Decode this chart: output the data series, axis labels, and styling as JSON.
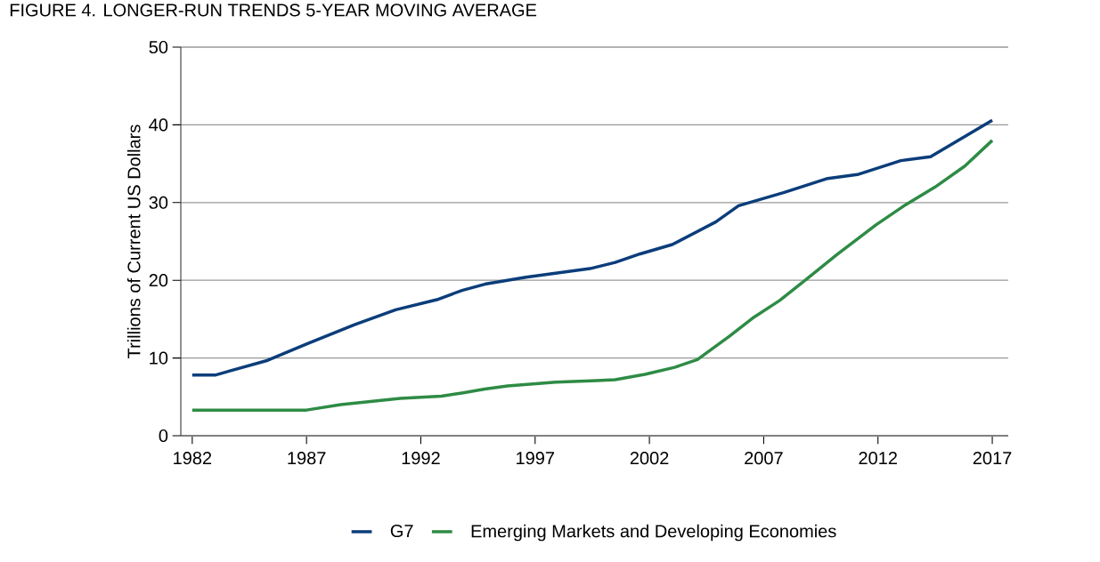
{
  "chart_data": {
    "type": "line",
    "title": "FIGURE 4. LONGER-RUN TRENDS 5-YEAR MOVING AVERAGE",
    "ylabel": "Trillions of Current US Dollars",
    "xlim": [
      1981.5,
      2017.7
    ],
    "xticks": [
      1982,
      1987,
      1992,
      1997,
      2002,
      2007,
      2012,
      2017
    ],
    "ylim": [
      0,
      50
    ],
    "yticks": [
      0,
      10,
      20,
      30,
      40,
      50
    ],
    "grid": "y",
    "legend": "bottom",
    "series": [
      {
        "name": "G7",
        "color": "#0b3d7a",
        "x": [
          1982,
          1983.0,
          1985.3,
          1987.0,
          1989.1,
          1990.9,
          1992.7,
          1993.8,
          1994.8,
          1996.6,
          1999.4,
          2000.5,
          2001.6,
          2003.0,
          2004.9,
          2005.9,
          2007.9,
          2009.8,
          2011.1,
          2013.0,
          2014.3,
          2015.8,
          2017.0
        ],
        "values": [
          7.8,
          7.8,
          9.7,
          11.8,
          14.3,
          16.2,
          17.5,
          18.7,
          19.5,
          20.4,
          21.5,
          22.3,
          23.4,
          24.6,
          27.5,
          29.6,
          31.3,
          33.1,
          33.6,
          35.4,
          35.9,
          38.5,
          40.6
        ]
      },
      {
        "name": "Emerging Markets and Developing Economies",
        "color": "#2e8b45",
        "x": [
          1982,
          1987.0,
          1988.5,
          1991.1,
          1992.9,
          1993.8,
          1994.8,
          1995.8,
          1997.9,
          1999.7,
          2000.5,
          2001.8,
          2003.1,
          2004.1,
          2005.5,
          2006.5,
          2007.7,
          2008.9,
          2010.2,
          2011.9,
          2013.2,
          2014.5,
          2015.8,
          2017.0
        ],
        "values": [
          3.3,
          3.3,
          4.0,
          4.8,
          5.1,
          5.5,
          6.0,
          6.4,
          6.9,
          7.1,
          7.2,
          7.9,
          8.8,
          9.8,
          12.8,
          15.1,
          17.4,
          20.2,
          23.3,
          27.1,
          29.7,
          32.0,
          34.7,
          38.0
        ]
      }
    ]
  }
}
